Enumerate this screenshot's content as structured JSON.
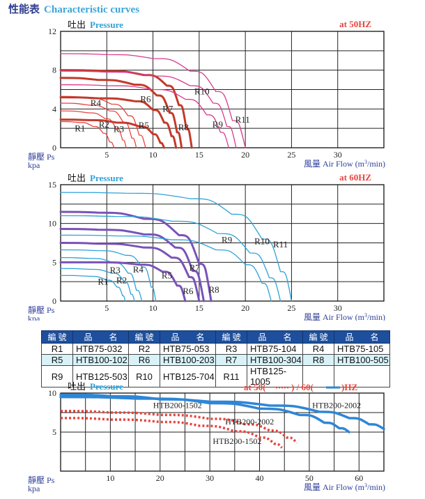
{
  "page": {
    "title_cn": "性能表",
    "title_en": "Characteristic curves"
  },
  "chart_data": [
    {
      "type": "line",
      "freq_label": "at 50HZ",
      "ylabel_cn": "吐出",
      "ylabel_en": "Pressure",
      "ylabel2_cn": "靜壓 Ps",
      "ylabel2_unit": "kpa",
      "xlabel_cn": "風量",
      "xlabel_en": "Air Flow (m",
      "xlabel_sup": "3",
      "xlabel_tail": "/min)",
      "xlim": [
        0,
        35
      ],
      "ylim": [
        0,
        12
      ],
      "xticks": [
        5,
        10,
        15,
        20,
        25,
        30
      ],
      "yticks": [
        0,
        4,
        8,
        12
      ],
      "series": [
        {
          "name": "R1",
          "color": "#e8443e",
          "x": [
            0,
            2,
            3.5,
            4.6,
            5.3,
            5.8
          ],
          "y": [
            2.7,
            2.6,
            2.2,
            1.5,
            0.6,
            0
          ]
        },
        {
          "name": "R2",
          "color": "#e8443e",
          "x": [
            0,
            3,
            4.8,
            6.0,
            6.7,
            7.1
          ],
          "y": [
            3.8,
            3.6,
            3.0,
            2.0,
            0.8,
            0
          ]
        },
        {
          "name": "R3",
          "color": "#e8443e",
          "x": [
            0,
            3,
            5.3,
            6.8,
            7.7,
            8.2
          ],
          "y": [
            4.6,
            4.4,
            3.8,
            2.6,
            1.0,
            0
          ]
        },
        {
          "name": "R4",
          "color": "#e8443e",
          "x": [
            0,
            3,
            5.5,
            7.3,
            8.5,
            9.2
          ],
          "y": [
            5.3,
            5.1,
            4.5,
            3.3,
            1.3,
            0
          ]
        },
        {
          "name": "R5",
          "color": "#c23a2a",
          "x": [
            0,
            3,
            6,
            8.5,
            10.0,
            10.8,
            11.2
          ],
          "y": [
            2.9,
            2.85,
            2.6,
            2.2,
            1.4,
            0.5,
            0
          ]
        },
        {
          "name": "R6",
          "color": "#c23a2a",
          "x": [
            0,
            4,
            8,
            10.0,
            11.2,
            12.0,
            12.5
          ],
          "y": [
            5.2,
            5.1,
            4.8,
            3.9,
            2.6,
            1.2,
            0
          ]
        },
        {
          "name": "R7",
          "color": "#c23a2a",
          "x": [
            0,
            4,
            8,
            10.4,
            11.8,
            12.6,
            13.1
          ],
          "y": [
            7.2,
            7.0,
            6.5,
            5.4,
            3.6,
            1.6,
            0
          ]
        },
        {
          "name": "R8",
          "color": "#c23a2a",
          "x": [
            0,
            5,
            9,
            11.5,
            12.8,
            13.6,
            14.2
          ],
          "y": [
            8.0,
            7.9,
            7.5,
            6.4,
            4.4,
            2.0,
            0
          ]
        },
        {
          "name": "R9",
          "color": "#d83a8e",
          "x": [
            0,
            5,
            10,
            13.5,
            15.8,
            17.3,
            18.2
          ],
          "y": [
            6.5,
            6.4,
            6.0,
            5.0,
            3.4,
            1.6,
            0
          ]
        },
        {
          "name": "R10",
          "color": "#d83a8e",
          "x": [
            0,
            5,
            10,
            14,
            16.5,
            18.0,
            19.0
          ],
          "y": [
            7.9,
            7.8,
            7.4,
            6.4,
            4.6,
            2.2,
            0
          ]
        },
        {
          "name": "R11",
          "color": "#d83a8e",
          "x": [
            0,
            5,
            10,
            14,
            16.8,
            18.6,
            20.0
          ],
          "y": [
            9.7,
            9.6,
            9.2,
            7.9,
            5.8,
            2.8,
            0
          ]
        }
      ],
      "labels": [
        {
          "text": "R1",
          "x": 2.1,
          "y": 1.7
        },
        {
          "text": "R2",
          "x": 4.7,
          "y": 2.1
        },
        {
          "text": "R3",
          "x": 6.3,
          "y": 1.6
        },
        {
          "text": "R4",
          "x": 3.8,
          "y": 4.3
        },
        {
          "text": "R5",
          "x": 9.0,
          "y": 2.0
        },
        {
          "text": "R6",
          "x": 9.2,
          "y": 4.7
        },
        {
          "text": "R7",
          "x": 11.6,
          "y": 3.7
        },
        {
          "text": "R8",
          "x": 13.3,
          "y": 1.8
        },
        {
          "text": "R9",
          "x": 17.0,
          "y": 2.1
        },
        {
          "text": "R10",
          "x": 15.3,
          "y": 5.5
        },
        {
          "text": "R11",
          "x": 19.7,
          "y": 2.6
        }
      ]
    },
    {
      "type": "line",
      "freq_label": "at 60HZ",
      "ylabel_cn": "吐出",
      "ylabel_en": "Pressure",
      "ylabel2_cn": "靜壓 Ps",
      "ylabel2_unit": "kpa",
      "xlabel_cn": "風量",
      "xlabel_en": "Air Flow (m",
      "xlabel_sup": "3",
      "xlabel_tail": "/min)",
      "xlim": [
        0,
        35
      ],
      "ylim": [
        0,
        15
      ],
      "xticks": [
        5,
        10,
        15,
        20,
        25,
        30
      ],
      "yticks": [
        0,
        5,
        10,
        15
      ],
      "series": [
        {
          "name": "R1",
          "color": "#2ca2d8",
          "x": [
            0,
            3,
            5.0,
            6.1,
            6.7,
            7.0
          ],
          "y": [
            3.3,
            3.2,
            2.7,
            1.8,
            0.7,
            0
          ]
        },
        {
          "name": "R2",
          "color": "#2ca2d8",
          "x": [
            0,
            3,
            5.5,
            6.9,
            7.6,
            8.0
          ],
          "y": [
            4.2,
            4.1,
            3.6,
            2.5,
            0.9,
            0
          ]
        },
        {
          "name": "R3",
          "color": "#2ca2d8",
          "x": [
            0,
            3,
            5.8,
            7.3,
            8.2,
            8.8
          ],
          "y": [
            5.6,
            5.5,
            4.9,
            3.6,
            1.4,
            0
          ]
        },
        {
          "name": "R4",
          "color": "#2ca2d8",
          "x": [
            0,
            4,
            7.0,
            8.8,
            9.8,
            10.3
          ],
          "y": [
            6.6,
            6.5,
            5.9,
            4.4,
            1.8,
            0
          ]
        },
        {
          "name": "R5",
          "color": "#7a52b8",
          "x": [
            0,
            4,
            8.5,
            11.0,
            12.6,
            13.5
          ],
          "y": [
            5.0,
            5.0,
            4.7,
            3.8,
            2.0,
            0
          ]
        },
        {
          "name": "R6",
          "color": "#7a52b8",
          "x": [
            0,
            4,
            9,
            12.0,
            13.9,
            15.0
          ],
          "y": [
            7.5,
            7.4,
            6.9,
            5.6,
            3.1,
            0
          ]
        },
        {
          "name": "R7",
          "color": "#7a52b8",
          "x": [
            0,
            4,
            9,
            12.4,
            14.3,
            15.5
          ],
          "y": [
            9.3,
            9.2,
            8.6,
            6.9,
            3.9,
            0
          ]
        },
        {
          "name": "R8",
          "color": "#7a52b8",
          "x": [
            0,
            4,
            9,
            12.8,
            15.0,
            16.3
          ],
          "y": [
            11.5,
            11.4,
            10.6,
            8.5,
            4.8,
            0
          ]
        },
        {
          "name": "R9",
          "color": "#2ca2d8",
          "x": [
            0,
            6,
            12,
            16.8,
            20.0,
            21.8,
            22.8
          ],
          "y": [
            8.5,
            8.4,
            7.9,
            6.6,
            4.7,
            2.3,
            0
          ]
        },
        {
          "name": "R10",
          "color": "#2ca2d8",
          "x": [
            0,
            6,
            12,
            17,
            20.5,
            22.6,
            23.8
          ],
          "y": [
            11.0,
            10.9,
            10.3,
            8.7,
            6.2,
            3.0,
            0
          ]
        },
        {
          "name": "R11",
          "color": "#2ca2d8",
          "x": [
            0,
            7,
            14,
            18.5,
            21.8,
            23.8,
            25.0
          ],
          "y": [
            14.0,
            13.9,
            13.2,
            11.2,
            8.0,
            3.8,
            0
          ]
        }
      ],
      "labels": [
        {
          "text": "R1",
          "x": 4.6,
          "y": 2.1
        },
        {
          "text": "R2",
          "x": 6.6,
          "y": 2.3
        },
        {
          "text": "R3",
          "x": 5.9,
          "y": 3.6
        },
        {
          "text": "R4",
          "x": 8.4,
          "y": 3.7
        },
        {
          "text": "R5",
          "x": 11.5,
          "y": 2.9
        },
        {
          "text": "R6",
          "x": 13.8,
          "y": 0.9
        },
        {
          "text": "R7",
          "x": 14.5,
          "y": 3.9
        },
        {
          "text": "R8",
          "x": 16.6,
          "y": 1.1
        },
        {
          "text": "R9",
          "x": 18.0,
          "y": 7.5
        },
        {
          "text": "R10",
          "x": 21.8,
          "y": 7.3
        },
        {
          "text": "R11",
          "x": 23.8,
          "y": 6.9
        }
      ]
    },
    {
      "type": "line",
      "freq_label_pre": "at 50(",
      "freq_label_mid": ") / 60(",
      "freq_label_post": ")HZ",
      "ylabel_cn": "吐出",
      "ylabel_en": "Pressure",
      "ylabel2_cn": "靜壓 Ps",
      "ylabel2_unit": "kpa",
      "xlabel_cn": "風量",
      "xlabel_en": "Air Flow (m",
      "xlabel_sup": "3",
      "xlabel_tail": "/min)",
      "xlim": [
        0,
        65
      ],
      "ylim": [
        0,
        10
      ],
      "xticks": [
        10,
        20,
        30,
        40,
        50,
        60
      ],
      "yticks": [
        5,
        10
      ],
      "series": [
        {
          "name": "HTB200-1502 60Hz",
          "color": "#2e86d6",
          "dash": false,
          "x": [
            0,
            10,
            20,
            30,
            40,
            48,
            53,
            56,
            58
          ],
          "y": [
            9.8,
            9.6,
            9.2,
            8.7,
            8.0,
            7.2,
            6.2,
            5.5,
            5.0
          ]
        },
        {
          "name": "HTB200-2002 60Hz",
          "color": "#2e86d6",
          "dash": false,
          "x": [
            0,
            15,
            30,
            42,
            52,
            58,
            62,
            65
          ],
          "y": [
            9.5,
            9.3,
            8.9,
            8.4,
            7.6,
            6.8,
            6.0,
            5.4
          ]
        },
        {
          "name": "HTB200-1502 50Hz",
          "color": "#e8443e",
          "dash": true,
          "x": [
            0,
            10,
            20,
            28,
            35,
            40,
            43,
            44.5
          ],
          "y": [
            6.8,
            6.6,
            6.3,
            5.8,
            5.1,
            4.3,
            3.5,
            3.0
          ]
        },
        {
          "name": "HTB200-2002 50Hz",
          "color": "#e8443e",
          "dash": true,
          "x": [
            0,
            10,
            20,
            30,
            37,
            42,
            45.5,
            47.5
          ],
          "y": [
            7.7,
            7.5,
            7.2,
            6.7,
            6.0,
            5.2,
            4.3,
            3.6
          ]
        }
      ],
      "labels": [
        {
          "text": "HTB200-1502",
          "x": 23.5,
          "y": 8.1
        },
        {
          "text": "HTB200-2002",
          "x": 55.5,
          "y": 8.1
        },
        {
          "text": "HTB200-2002",
          "x": 38.0,
          "y": 6.0
        },
        {
          "text": "HTB200-1502",
          "x": 35.5,
          "y": 3.5
        }
      ]
    }
  ],
  "model_table": {
    "headers": [
      "編 號",
      "品　　名",
      "編 號",
      "品　　名",
      "編 號",
      "品　　名",
      "編 號",
      "品　　名"
    ],
    "rows": [
      [
        "R1",
        "HTB75-032",
        "R2",
        "HTB75-053",
        "R3",
        "HTB75-104",
        "R4",
        "HTB75-105"
      ],
      [
        "R5",
        "HTB100-102",
        "R6",
        "HTB100-203",
        "R7",
        "HTB100-304",
        "R8",
        "HTB100-505"
      ],
      [
        "R9",
        "HTB125-503",
        "R10",
        "HTB125-704",
        "R11",
        "HTB125-1005",
        "",
        ""
      ]
    ]
  }
}
